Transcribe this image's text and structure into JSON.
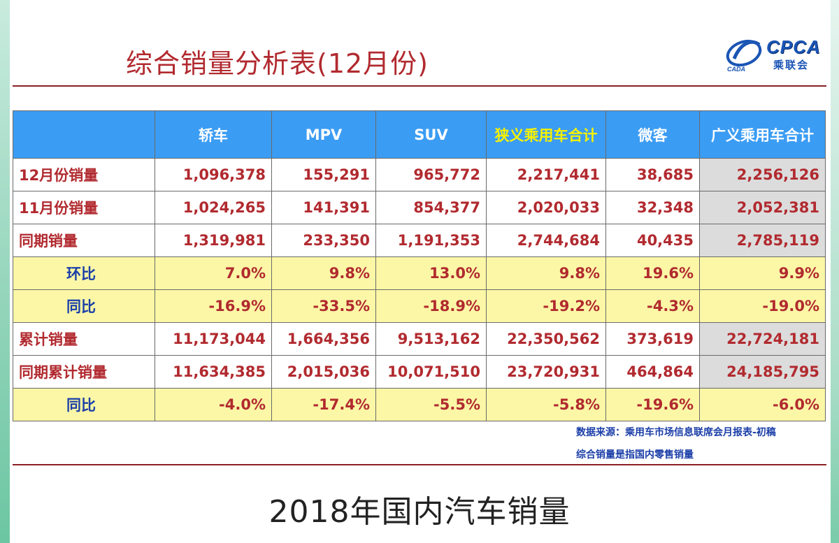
{
  "title": "综合销量分析表(12月份)",
  "logo": {
    "text": "CPCA",
    "cn": "乘联会",
    "mark_text": "CADA"
  },
  "table": {
    "headers": [
      "",
      "轿车",
      "MPV",
      "SUV",
      "狭义乘用车合计",
      "微客",
      "广义乘用车合计"
    ],
    "rows": [
      {
        "label": "12月份销量",
        "values": [
          "1,096,378",
          "155,291",
          "965,772",
          "2,217,441",
          "38,685",
          "2,256,126"
        ],
        "type": "volume"
      },
      {
        "label": "11月份销量",
        "values": [
          "1,024,265",
          "141,391",
          "854,377",
          "2,020,033",
          "32,348",
          "2,052,381"
        ],
        "type": "volume"
      },
      {
        "label": "同期销量",
        "values": [
          "1,319,981",
          "233,350",
          "1,191,353",
          "2,744,684",
          "40,435",
          "2,785,119"
        ],
        "type": "volume"
      },
      {
        "label": "环比",
        "values": [
          "7.0%",
          "9.8%",
          "13.0%",
          "9.8%",
          "19.6%",
          "9.9%"
        ],
        "type": "pct"
      },
      {
        "label": "同比",
        "values": [
          "-16.9%",
          "-33.5%",
          "-18.9%",
          "-19.2%",
          "-4.3%",
          "-19.0%"
        ],
        "type": "pct"
      },
      {
        "label": "累计销量",
        "values": [
          "11,173,044",
          "1,664,356",
          "9,513,162",
          "22,350,562",
          "373,619",
          "22,724,181"
        ],
        "type": "volume"
      },
      {
        "label": "同期累计销量",
        "values": [
          "11,634,385",
          "2,015,036",
          "10,071,510",
          "23,720,931",
          "464,864",
          "24,185,795"
        ],
        "type": "volume"
      },
      {
        "label": "同比",
        "values": [
          "-4.0%",
          "-17.4%",
          "-5.5%",
          "-5.8%",
          "-19.6%",
          "-6.0%"
        ],
        "type": "pct"
      }
    ]
  },
  "notes": [
    "数据来源：乘用车市场信息联席会月报表-初稿",
    "综合销量是指国内零售销量"
  ],
  "caption": "2018年国内汽车销量",
  "colors": {
    "header_bg": "#3b9cf3",
    "header_highlight": "#f7f200",
    "accent_red": "#b12a2f",
    "pct_row_bg": "#fbf7a6",
    "label_blue": "#1b3ea8"
  }
}
